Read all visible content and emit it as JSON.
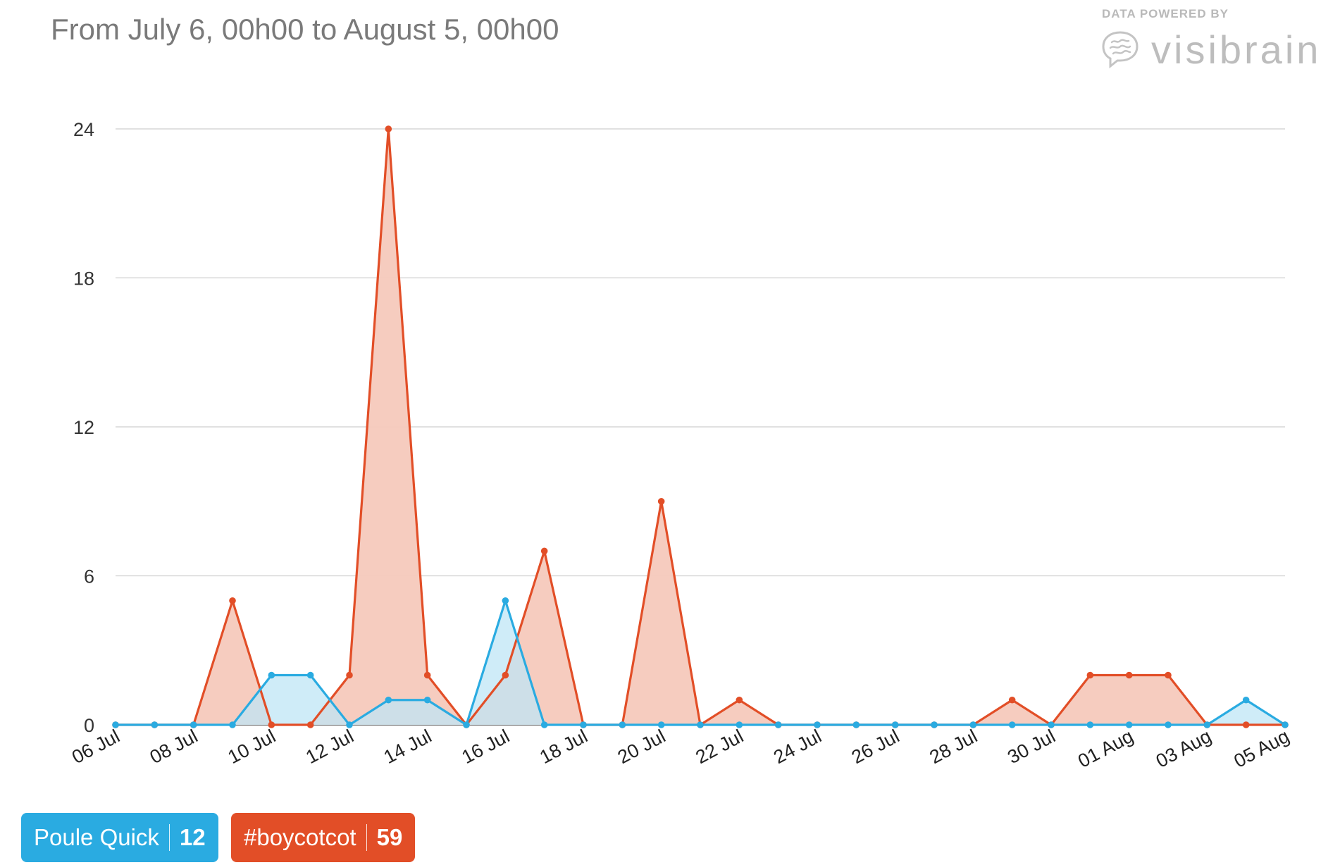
{
  "header": {
    "title": "From July 6, 00h00 to August 5, 00h00"
  },
  "brand": {
    "caption": "DATA POWERED BY",
    "name": "visibrain",
    "icon": "brain-icon",
    "color": "#bdbdbd"
  },
  "legend": [
    {
      "label": "Poule Quick",
      "count": "12",
      "color": "#2aabe1"
    },
    {
      "label": "#boycotcot",
      "count": "59",
      "color": "#e24e27"
    }
  ],
  "chart_data": {
    "type": "area",
    "title": "",
    "xlabel": "",
    "ylabel": "",
    "x": [
      "2014-07-06",
      "2014-07-07",
      "2014-07-08",
      "2014-07-09",
      "2014-07-10",
      "2014-07-11",
      "2014-07-12",
      "2014-07-13",
      "2014-07-14",
      "2014-07-15",
      "2014-07-16",
      "2014-07-17",
      "2014-07-18",
      "2014-07-19",
      "2014-07-20",
      "2014-07-21",
      "2014-07-22",
      "2014-07-23",
      "2014-07-24",
      "2014-07-25",
      "2014-07-26",
      "2014-07-27",
      "2014-07-28",
      "2014-07-29",
      "2014-07-30",
      "2014-07-31",
      "2014-08-01",
      "2014-08-02",
      "2014-08-03",
      "2014-08-04",
      "2014-08-05"
    ],
    "x_tick_labels": [
      "06 Jul",
      "08 Jul",
      "10 Jul",
      "12 Jul",
      "14 Jul",
      "16 Jul",
      "18 Jul",
      "20 Jul",
      "22 Jul",
      "24 Jul",
      "26 Jul",
      "28 Jul",
      "30 Jul",
      "01 Aug",
      "03 Aug",
      "05 Aug"
    ],
    "y_ticks": [
      "0",
      "6",
      "12",
      "18",
      "24"
    ],
    "ylim": [
      0,
      24
    ],
    "grid": true,
    "legend_position": "bottom-left",
    "series": [
      {
        "name": "Poule Quick",
        "color": "#2aabe1",
        "fill": "#bfe6f6",
        "values": [
          0,
          0,
          0,
          0,
          2,
          2,
          0,
          1,
          1,
          0,
          5,
          0,
          0,
          0,
          0,
          0,
          0,
          0,
          0,
          0,
          0,
          0,
          0,
          0,
          0,
          0,
          0,
          0,
          0,
          1,
          0
        ]
      },
      {
        "name": "#boycotcot",
        "color": "#e24e27",
        "fill": "#f5c9bc",
        "values": [
          0,
          0,
          0,
          5,
          0,
          0,
          2,
          24,
          2,
          0,
          2,
          7,
          0,
          0,
          9,
          0,
          1,
          0,
          0,
          0,
          0,
          0,
          0,
          1,
          0,
          2,
          2,
          2,
          0,
          0,
          0
        ]
      }
    ]
  }
}
